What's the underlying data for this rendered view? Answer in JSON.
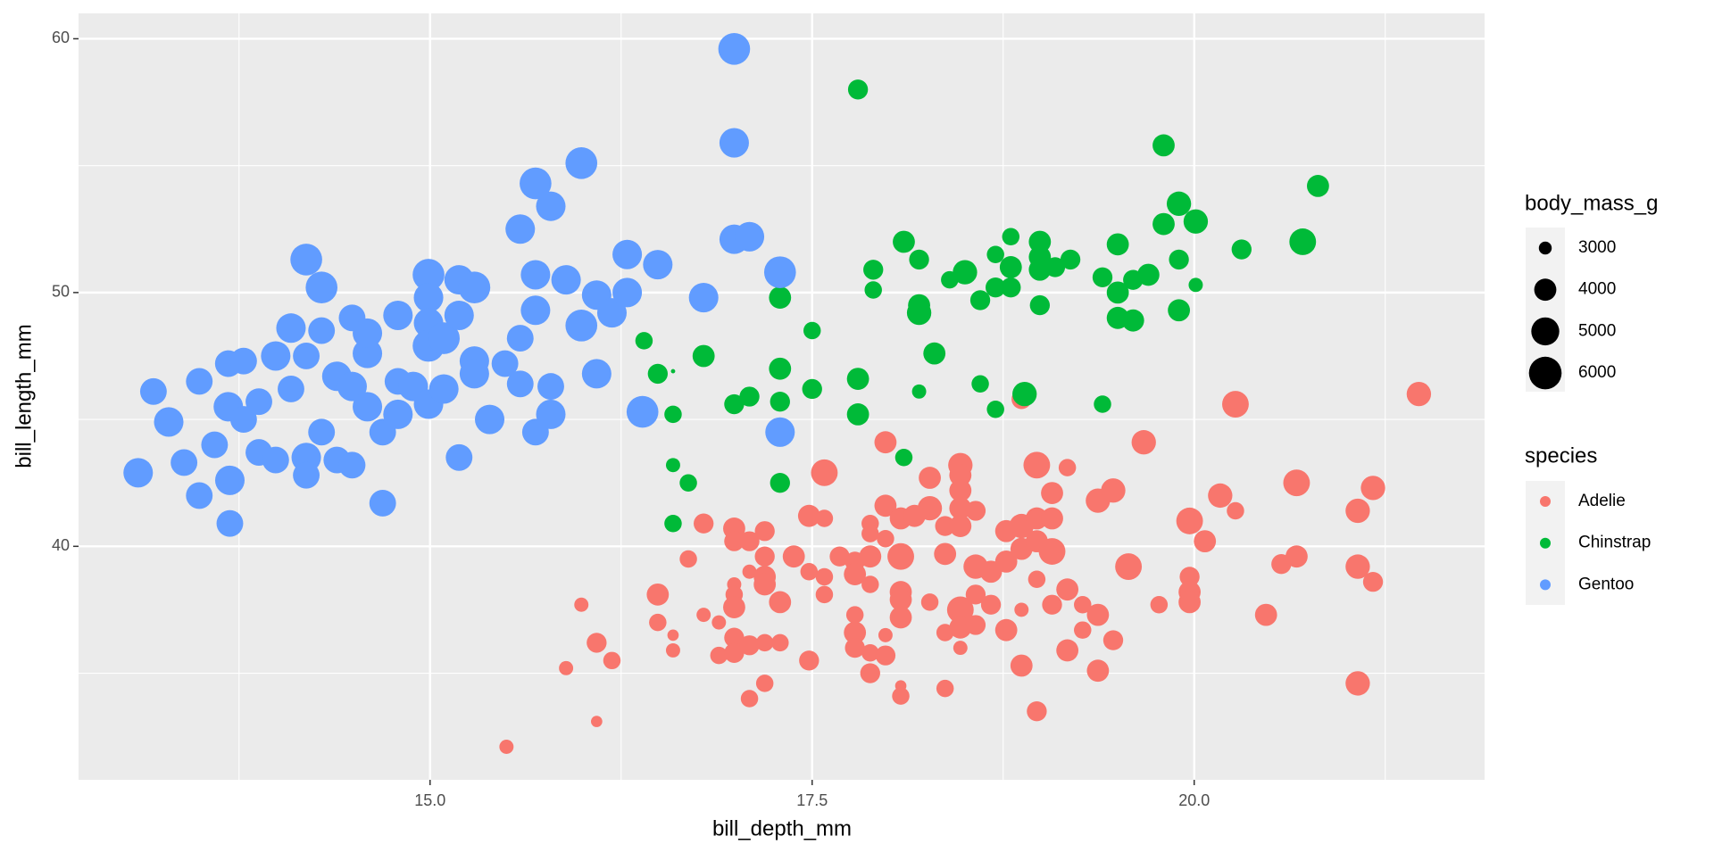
{
  "chart_data": {
    "type": "bubble",
    "x_label": "bill_depth_mm",
    "y_label": "bill_length_mm",
    "xlim": [
      12.7,
      21.9
    ],
    "ylim": [
      30.8,
      61.0
    ],
    "xticks": [
      {
        "value": 15,
        "label": "15.0"
      },
      {
        "value": 17.5,
        "label": "17.5"
      },
      {
        "value": 20,
        "label": "20.0"
      }
    ],
    "yticks": [
      40,
      50,
      60
    ],
    "grid": true,
    "legend_title": "species",
    "size_legend": {
      "title": "body_mass_g",
      "breaks": [
        3000,
        4000,
        5000,
        6000
      ]
    },
    "series": [
      {
        "name": "Adelie",
        "color": "#F8766D",
        "x": [
          15.5,
          15.89,
          15.99,
          16.09,
          16.09,
          16.19,
          16.49,
          16.49,
          16.59,
          16.59,
          16.69,
          16.79,
          16.79,
          16.89,
          16.89,
          16.99,
          16.99,
          16.99,
          16.99,
          16.99,
          16.99,
          16.99,
          17.09,
          17.09,
          17.09,
          17.09,
          17.19,
          17.19,
          17.19,
          17.19,
          17.19,
          17.19,
          17.29,
          17.29,
          17.38,
          17.48,
          17.48,
          17.48,
          17.58,
          17.58,
          17.58,
          17.58,
          17.68,
          17.78,
          17.78,
          17.78,
          17.78,
          17.78,
          17.88,
          17.88,
          17.88,
          17.88,
          17.88,
          17.88,
          17.98,
          17.98,
          17.98,
          17.98,
          17.98,
          18.08,
          18.08,
          18.08,
          18.08,
          18.08,
          18.08,
          18.08,
          18.17,
          18.27,
          18.27,
          18.27,
          18.37,
          18.37,
          18.37,
          18.37,
          18.47,
          18.47,
          18.47,
          18.47,
          18.47,
          18.47,
          18.47,
          18.47,
          18.57,
          18.57,
          18.57,
          18.57,
          18.67,
          18.67,
          18.77,
          18.77,
          18.77,
          18.87,
          18.87,
          18.87,
          18.87,
          18.87,
          18.97,
          18.97,
          18.97,
          18.97,
          18.97,
          19.07,
          19.07,
          19.07,
          19.07,
          19.17,
          19.17,
          19.17,
          19.27,
          19.27,
          19.37,
          19.37,
          19.37,
          19.47,
          19.47,
          19.57,
          19.67,
          19.77,
          19.97,
          19.97,
          19.97,
          19.97,
          20.07,
          20.17,
          20.27,
          20.27,
          20.47,
          20.57,
          20.67,
          20.67,
          21.07,
          21.07,
          21.07,
          21.17,
          21.17,
          21.47
        ],
        "values": [
          32.1,
          35.2,
          37.7,
          36.2,
          33.1,
          35.5,
          38.1,
          37.0,
          36.5,
          35.9,
          39.5,
          40.9,
          37.3,
          37.0,
          35.7,
          40.7,
          40.2,
          38.5,
          38.1,
          37.6,
          36.4,
          35.8,
          36.1,
          40.2,
          39.0,
          34.0,
          40.6,
          39.6,
          38.8,
          38.5,
          36.2,
          34.6,
          37.8,
          36.2,
          39.6,
          41.2,
          39.0,
          35.5,
          42.9,
          41.1,
          38.8,
          38.1,
          39.6,
          39.4,
          38.9,
          37.3,
          36.6,
          36.0,
          40.9,
          40.5,
          39.6,
          38.5,
          35.8,
          35.0,
          44.1,
          41.6,
          40.3,
          36.5,
          35.7,
          41.1,
          39.6,
          38.2,
          37.9,
          37.2,
          34.5,
          34.1,
          41.2,
          42.7,
          41.5,
          37.8,
          40.8,
          39.7,
          36.6,
          34.4,
          43.2,
          42.8,
          42.2,
          41.5,
          40.8,
          37.5,
          36.8,
          36.0,
          41.4,
          39.2,
          38.1,
          36.9,
          39.0,
          37.7,
          40.6,
          39.4,
          36.7,
          45.8,
          40.8,
          39.9,
          37.5,
          35.3,
          43.2,
          41.1,
          40.2,
          38.7,
          33.5,
          42.1,
          41.1,
          39.8,
          37.7,
          43.1,
          38.3,
          35.9,
          37.7,
          36.7,
          41.8,
          37.3,
          35.1,
          42.2,
          36.3,
          39.2,
          44.1,
          37.7,
          41.0,
          38.8,
          38.2,
          37.8,
          40.2,
          42.0,
          45.6,
          41.4,
          37.3,
          39.3,
          42.5,
          39.6,
          41.4,
          39.2,
          34.6,
          42.3,
          38.6,
          46.0
        ],
        "sizes": [
          3100,
          3100,
          3100,
          3700,
          2900,
          3400,
          4000,
          3400,
          2900,
          3100,
          3400,
          3700,
          3100,
          3100,
          3400,
          4000,
          3700,
          3100,
          3400,
          4000,
          3700,
          3700,
          3700,
          3700,
          3100,
          3400,
          3700,
          3700,
          4000,
          4000,
          3400,
          3400,
          4000,
          3400,
          4000,
          4000,
          3400,
          3700,
          4750,
          3400,
          3400,
          3400,
          3700,
          3700,
          4000,
          3400,
          4000,
          3700,
          3400,
          3400,
          4000,
          3400,
          3400,
          3700,
          4000,
          4000,
          3400,
          3100,
          3700,
          4000,
          4750,
          4000,
          4000,
          4000,
          2900,
          3400,
          4000,
          4000,
          4350,
          3400,
          3700,
          4000,
          3400,
          3400,
          4350,
          4000,
          4000,
          4000,
          4000,
          4750,
          4000,
          3100,
          3700,
          4350,
          3700,
          3700,
          4000,
          3700,
          4000,
          4000,
          4000,
          3700,
          4350,
          4000,
          3100,
          4000,
          4750,
          4000,
          4000,
          3400,
          3700,
          4000,
          4000,
          4750,
          3700,
          3400,
          4000,
          4000,
          3400,
          3400,
          4350,
          4000,
          4000,
          4350,
          3700,
          4750,
          4350,
          3400,
          4750,
          3700,
          4000,
          4000,
          4000,
          4350,
          4750,
          3400,
          4000,
          3700,
          4750,
          4000,
          4350,
          4350,
          4350,
          4350,
          3700,
          4350
        ]
      },
      {
        "name": "Chinstrap",
        "color": "#00BA38",
        "x": [
          16.4,
          16.49,
          16.59,
          16.59,
          16.59,
          16.59,
          16.69,
          16.79,
          16.99,
          17.09,
          17.29,
          17.29,
          17.29,
          17.29,
          17.5,
          17.5,
          17.8,
          17.8,
          17.8,
          17.9,
          17.9,
          18.1,
          18.1,
          18.2,
          18.2,
          18.2,
          18.2,
          18.3,
          18.4,
          18.5,
          18.6,
          18.6,
          18.7,
          18.7,
          18.7,
          18.8,
          18.8,
          18.8,
          18.89,
          18.99,
          18.99,
          18.99,
          18.99,
          19.09,
          19.19,
          19.4,
          19.4,
          19.5,
          19.5,
          19.5,
          19.6,
          19.6,
          19.7,
          19.8,
          19.8,
          19.9,
          19.9,
          19.9,
          20.01,
          20.01,
          20.31,
          20.71,
          20.81
        ],
        "values": [
          48.1,
          46.8,
          46.9,
          45.2,
          43.2,
          40.9,
          42.5,
          47.5,
          45.6,
          45.9,
          49.8,
          47.0,
          45.7,
          42.5,
          48.5,
          46.2,
          58.0,
          46.6,
          45.2,
          50.9,
          50.1,
          52.0,
          43.5,
          51.3,
          49.5,
          49.2,
          46.1,
          47.6,
          50.5,
          50.8,
          49.7,
          46.4,
          51.5,
          50.2,
          45.4,
          52.2,
          51.0,
          50.2,
          46.0,
          52.0,
          51.4,
          50.9,
          49.5,
          51.0,
          51.3,
          50.6,
          45.6,
          51.9,
          50.0,
          49.0,
          50.5,
          48.9,
          50.7,
          55.8,
          52.7,
          53.5,
          51.3,
          49.3,
          52.8,
          50.3,
          51.7,
          52.0,
          54.2
        ],
        "sizes": [
          3400,
          3700,
          2700,
          3400,
          3100,
          3400,
          3400,
          4000,
          3700,
          3700,
          4000,
          4000,
          3700,
          3700,
          3400,
          3700,
          3700,
          4000,
          4000,
          3700,
          3400,
          4000,
          3400,
          3700,
          4000,
          4350,
          3100,
          4000,
          3400,
          4350,
          3700,
          3400,
          3400,
          3700,
          3400,
          3400,
          4000,
          3700,
          4350,
          4000,
          4000,
          4000,
          3700,
          3700,
          3700,
          3700,
          3400,
          4000,
          4000,
          4000,
          3700,
          4000,
          4000,
          4000,
          4000,
          4350,
          3700,
          4000,
          4350,
          3100,
          3700,
          4750,
          4000
        ]
      },
      {
        "name": "Gentoo",
        "color": "#619CFF",
        "x": [
          13.09,
          13.19,
          13.29,
          13.39,
          13.49,
          13.49,
          13.59,
          13.68,
          13.68,
          13.69,
          13.69,
          13.78,
          13.78,
          13.88,
          13.88,
          13.99,
          13.99,
          14.09,
          14.09,
          14.19,
          14.19,
          14.19,
          14.19,
          14.29,
          14.29,
          14.29,
          14.39,
          14.39,
          14.49,
          14.49,
          14.49,
          14.59,
          14.59,
          14.59,
          14.69,
          14.69,
          14.79,
          14.79,
          14.79,
          14.89,
          14.99,
          14.99,
          14.99,
          14.99,
          14.99,
          15.09,
          15.09,
          15.19,
          15.19,
          15.19,
          15.29,
          15.29,
          15.29,
          15.39,
          15.49,
          15.59,
          15.59,
          15.59,
          15.69,
          15.69,
          15.69,
          15.69,
          15.79,
          15.79,
          15.79,
          15.89,
          15.99,
          15.99,
          16.09,
          16.09,
          16.19,
          16.29,
          16.29,
          16.39,
          16.49,
          16.79,
          16.99,
          16.99,
          16.99,
          17.09,
          17.29,
          17.29
        ],
        "values": [
          42.9,
          46.1,
          44.9,
          43.3,
          46.5,
          42.0,
          44.0,
          47.2,
          45.5,
          42.6,
          40.9,
          47.3,
          45.0,
          45.7,
          43.7,
          43.4,
          47.5,
          48.6,
          46.2,
          51.3,
          47.5,
          43.5,
          42.8,
          50.2,
          48.5,
          44.5,
          46.7,
          43.4,
          49.0,
          46.3,
          43.2,
          47.6,
          45.5,
          48.4,
          44.5,
          41.7,
          49.1,
          45.2,
          46.5,
          46.3,
          50.7,
          49.8,
          48.8,
          47.9,
          45.6,
          48.2,
          46.2,
          43.5,
          50.5,
          49.1,
          47.3,
          46.8,
          50.2,
          45.0,
          47.2,
          52.5,
          46.4,
          48.2,
          54.3,
          50.7,
          49.3,
          44.5,
          53.4,
          46.3,
          45.2,
          50.5,
          48.7,
          55.1,
          49.9,
          46.8,
          49.2,
          51.5,
          50.0,
          45.3,
          51.1,
          49.8,
          59.6,
          55.9,
          52.1,
          52.2,
          50.8,
          44.5
        ],
        "sizes": [
          5300,
          4750,
          5300,
          4750,
          4750,
          4750,
          4750,
          4750,
          5300,
          5300,
          4750,
          4750,
          4750,
          4750,
          4750,
          4750,
          5300,
          5300,
          4750,
          5800,
          4750,
          5300,
          4750,
          5800,
          4750,
          4750,
          5300,
          4750,
          4750,
          5300,
          4750,
          5300,
          5300,
          5300,
          4750,
          4750,
          5300,
          5300,
          4750,
          5300,
          5800,
          5300,
          5300,
          5800,
          5300,
          5800,
          5300,
          4750,
          5300,
          5300,
          5300,
          5300,
          5800,
          5300,
          4750,
          5300,
          4750,
          4750,
          5800,
          5300,
          5300,
          4750,
          5300,
          4750,
          5300,
          5300,
          5800,
          5800,
          5300,
          5300,
          5300,
          5300,
          5300,
          5800,
          5300,
          5300,
          5800,
          5300,
          5300,
          5300,
          5800,
          5300
        ]
      }
    ]
  }
}
